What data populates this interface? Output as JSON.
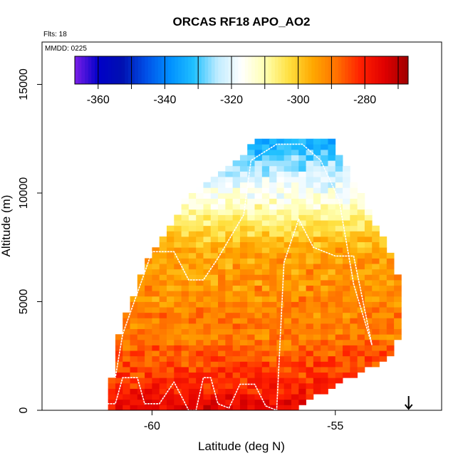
{
  "chart_data": {
    "type": "heatmap",
    "title": "ORCAS RF18 APO_AO2",
    "flights_label": "Flts: 18",
    "date_label": "MMDD: 0225",
    "xlabel": "Latitude (deg N)",
    "ylabel": "Altitude (m)",
    "xlim": [
      -63,
      -52.1
    ],
    "ylim": [
      0,
      16950
    ],
    "x_ticks": [
      -60,
      -55
    ],
    "x_tick_labels": [
      "-60",
      "-55"
    ],
    "y_ticks": [
      0,
      5000,
      10000,
      15000
    ],
    "y_tick_labels": [
      "0",
      "5000",
      "10000",
      "15000"
    ],
    "colorbar": {
      "range": [
        -367,
        -267
      ],
      "ticks": [
        -360,
        -340,
        -320,
        -300,
        -280
      ],
      "tick_labels": [
        "-360",
        "-340",
        "-320",
        "-300",
        "-280"
      ],
      "colors": [
        "#7b1fe8",
        "#0000c8",
        "#0010b0",
        "#0050e8",
        "#0090ff",
        "#20c0ff",
        "#c0ecff",
        "#ffffff",
        "#ffffb0",
        "#ffe040",
        "#ffa800",
        "#ff7000",
        "#ff2000",
        "#e00000",
        "#a00000"
      ]
    },
    "grid_cell": {
      "dlat": 0.2,
      "dalt": 250
    },
    "data_envelope": [
      {
        "alt": 300,
        "lat_min": -61.2,
        "lat_max": -56.0
      },
      {
        "alt": 1500,
        "lat_min": -61.0,
        "lat_max": -54.7
      },
      {
        "alt": 2500,
        "lat_min": -61.0,
        "lat_max": -53.5
      },
      {
        "alt": 4500,
        "lat_min": -60.6,
        "lat_max": -53.2
      },
      {
        "alt": 7000,
        "lat_min": -60.0,
        "lat_max": -53.5
      },
      {
        "alt": 8500,
        "lat_min": -59.4,
        "lat_max": -54.0
      },
      {
        "alt": 10000,
        "lat_min": -58.9,
        "lat_max": -54.4
      },
      {
        "alt": 11500,
        "lat_min": -57.6,
        "lat_max": -54.9
      },
      {
        "alt": 12400,
        "lat_min": -57.1,
        "lat_max": -55.2
      }
    ],
    "value_profile": [
      {
        "alt": 0,
        "value": -275
      },
      {
        "alt": 1500,
        "value": -283
      },
      {
        "alt": 3500,
        "value": -290
      },
      {
        "alt": 6000,
        "value": -293
      },
      {
        "alt": 7500,
        "value": -296
      },
      {
        "alt": 8500,
        "value": -304
      },
      {
        "alt": 9500,
        "value": -313
      },
      {
        "alt": 10500,
        "value": -320
      },
      {
        "alt": 11500,
        "value": -328
      },
      {
        "alt": 12400,
        "value": -334
      }
    ],
    "flight_track": [
      [
        -61.3,
        300
      ],
      [
        -61.0,
        300
      ],
      [
        -60.8,
        1500
      ],
      [
        -60.4,
        1500
      ],
      [
        -60.2,
        300
      ],
      [
        -59.8,
        300
      ],
      [
        -59.4,
        1300
      ],
      [
        -59.0,
        0
      ],
      [
        -58.8,
        0
      ],
      [
        -58.6,
        1500
      ],
      [
        -58.4,
        1500
      ],
      [
        -58.2,
        300
      ],
      [
        -57.9,
        100
      ],
      [
        -57.6,
        1200
      ],
      [
        -57.2,
        1200
      ],
      [
        -56.9,
        200
      ],
      [
        -56.6,
        0
      ],
      [
        -56.4,
        6800
      ],
      [
        -56.0,
        8800
      ],
      [
        -55.6,
        7500
      ],
      [
        -55.0,
        7100
      ],
      [
        -54.5,
        7100
      ],
      [
        -54.0,
        3000
      ],
      [
        -54.5,
        5800
      ],
      [
        -54.9,
        9700
      ],
      [
        -55.4,
        11500
      ],
      [
        -55.9,
        12250
      ],
      [
        -56.6,
        12250
      ],
      [
        -57.3,
        11500
      ],
      [
        -57.5,
        9000
      ],
      [
        -58.2,
        7000
      ],
      [
        -58.6,
        6000
      ],
      [
        -59.0,
        6000
      ],
      [
        -59.4,
        7300
      ],
      [
        -60.0,
        7300
      ],
      [
        -60.8,
        3500
      ],
      [
        -61.0,
        1500
      ]
    ],
    "arrow_marker_lat": -53.0
  }
}
